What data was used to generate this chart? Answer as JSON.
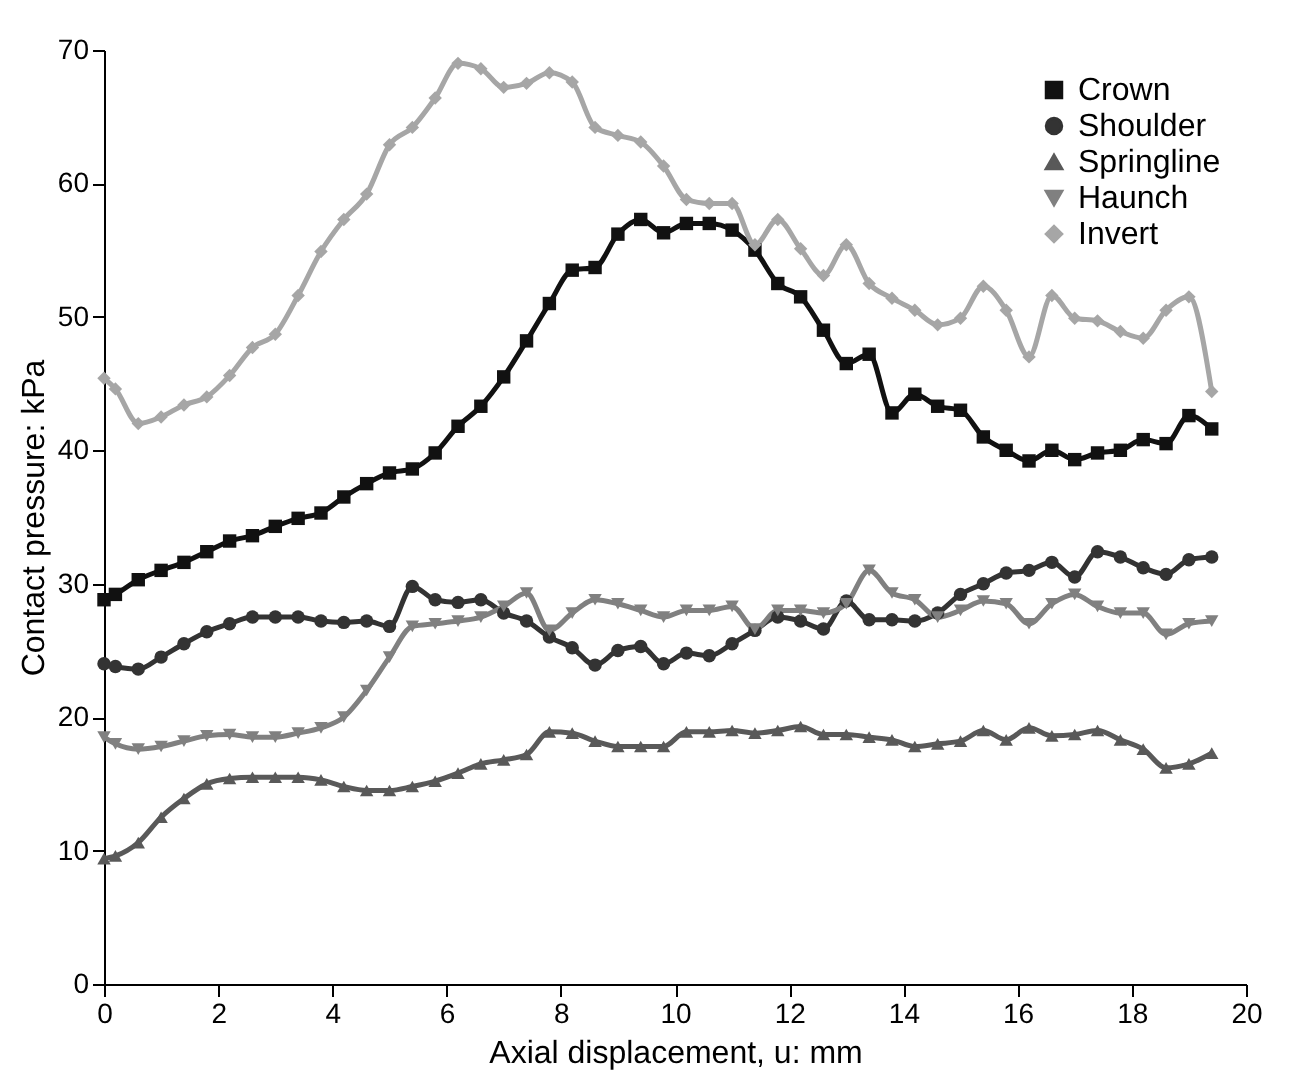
{
  "chart_data": {
    "type": "line",
    "xlabel": "Axial displacement, u: mm",
    "ylabel": "Contact pressure: kPa",
    "x": [
      0,
      0.2,
      0.6,
      1.0,
      1.4,
      1.8,
      2.2,
      2.6,
      3.0,
      3.4,
      3.8,
      4.2,
      4.6,
      5.0,
      5.4,
      5.8,
      6.2,
      6.6,
      7.0,
      7.4,
      7.8,
      8.2,
      8.6,
      9.0,
      9.4,
      9.8,
      10.2,
      10.6,
      11.0,
      11.4,
      11.8,
      12.2,
      12.6,
      13.0,
      13.4,
      13.8,
      14.2,
      14.6,
      15.0,
      15.4,
      15.8,
      16.2,
      16.6,
      17.0,
      17.4,
      17.8,
      18.2,
      18.6,
      19.0,
      19.4
    ],
    "series": [
      {
        "name": "Crown",
        "color": "#111111",
        "marker": "square",
        "values": [
          28.8,
          29.2,
          30.3,
          31.0,
          31.6,
          32.4,
          33.2,
          33.6,
          34.3,
          34.9,
          35.3,
          36.5,
          37.5,
          38.3,
          38.6,
          39.8,
          41.8,
          43.3,
          45.5,
          48.2,
          51.0,
          53.5,
          53.7,
          56.2,
          57.3,
          56.3,
          57.0,
          57.0,
          56.5,
          55.0,
          52.5,
          51.5,
          49.0,
          46.5,
          47.2,
          42.8,
          44.2,
          43.3,
          43.0,
          41.0,
          40.0,
          39.2,
          40.0,
          39.3,
          39.8,
          40.0,
          40.8,
          40.5,
          42.6,
          41.6
        ]
      },
      {
        "name": "Shoulder",
        "color": "#333333",
        "marker": "circle",
        "values": [
          24.0,
          23.8,
          23.6,
          24.5,
          25.5,
          26.4,
          27.0,
          27.5,
          27.5,
          27.5,
          27.2,
          27.1,
          27.2,
          26.8,
          29.8,
          28.8,
          28.6,
          28.8,
          27.8,
          27.2,
          26.0,
          25.2,
          23.9,
          25.0,
          25.3,
          24.0,
          24.8,
          24.6,
          25.5,
          26.5,
          27.5,
          27.2,
          26.6,
          28.7,
          27.3,
          27.3,
          27.2,
          27.8,
          29.2,
          30.0,
          30.8,
          31.0,
          31.6,
          30.5,
          32.4,
          32.0,
          31.2,
          30.7,
          31.8,
          32.0
        ]
      },
      {
        "name": "Springline",
        "color": "#595959",
        "marker": "triangle",
        "values": [
          9.4,
          9.6,
          10.6,
          12.5,
          13.9,
          15.0,
          15.4,
          15.5,
          15.5,
          15.5,
          15.3,
          14.8,
          14.5,
          14.5,
          14.8,
          15.2,
          15.8,
          16.5,
          16.8,
          17.2,
          18.9,
          18.8,
          18.2,
          17.8,
          17.8,
          17.8,
          18.9,
          18.9,
          19.0,
          18.8,
          19.0,
          19.3,
          18.7,
          18.7,
          18.5,
          18.3,
          17.8,
          18.0,
          18.2,
          19.0,
          18.3,
          19.2,
          18.6,
          18.7,
          19.0,
          18.3,
          17.6,
          16.2,
          16.5,
          17.3
        ]
      },
      {
        "name": "Haunch",
        "color": "#808080",
        "marker": "triangle-down",
        "values": [
          18.5,
          18.0,
          17.6,
          17.8,
          18.2,
          18.6,
          18.7,
          18.5,
          18.5,
          18.8,
          19.2,
          20.0,
          22.0,
          24.5,
          26.8,
          27.0,
          27.2,
          27.5,
          28.3,
          29.3,
          26.5,
          27.8,
          28.8,
          28.5,
          28.0,
          27.5,
          28.0,
          28.0,
          28.3,
          26.6,
          28.0,
          28.0,
          27.8,
          28.5,
          31.0,
          29.3,
          28.8,
          27.5,
          28.0,
          28.7,
          28.5,
          27.0,
          28.5,
          29.2,
          28.3,
          27.8,
          27.8,
          26.2,
          27.0,
          27.2
        ]
      },
      {
        "name": "Invert",
        "color": "#a6a6a6",
        "marker": "diamond",
        "values": [
          45.4,
          44.6,
          42.0,
          42.5,
          43.4,
          44.0,
          45.6,
          47.7,
          48.7,
          51.6,
          54.9,
          57.3,
          59.2,
          62.9,
          64.2,
          66.4,
          69.0,
          68.6,
          67.2,
          67.5,
          68.3,
          67.6,
          64.2,
          63.6,
          63.1,
          61.3,
          58.8,
          58.5,
          58.5,
          55.4,
          57.3,
          55.1,
          53.1,
          55.4,
          52.5,
          51.4,
          50.5,
          49.4,
          49.9,
          52.3,
          50.5,
          47.0,
          51.6,
          49.9,
          49.7,
          48.9,
          48.4,
          50.5,
          51.5,
          44.4
        ]
      }
    ],
    "xlim": [
      0,
      20
    ],
    "xticks": [
      0,
      2,
      4,
      6,
      8,
      10,
      12,
      14,
      16,
      18,
      20
    ],
    "ylim": [
      0,
      70
    ],
    "yticks": [
      0,
      10,
      20,
      30,
      40,
      50,
      60,
      70
    ],
    "grid": false,
    "legend": "top right",
    "line_style": "solid"
  }
}
